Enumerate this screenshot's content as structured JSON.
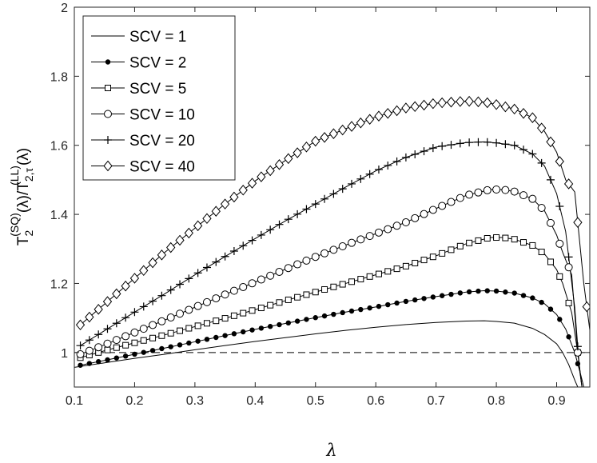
{
  "chart_data": {
    "type": "line",
    "title": "",
    "xlabel": "λ",
    "ylabel": {
      "base": "T",
      "sub1": "2",
      "sup1": "(SQ)",
      "mid": "(λ)/T",
      "sub2": "2,τ",
      "sup2": "(LL)",
      "tail": "(λ)"
    },
    "xlim": [
      0.1,
      0.955
    ],
    "ylim": [
      0.9,
      2.0
    ],
    "xticks": [
      "0.1",
      "0.2",
      "0.3",
      "0.4",
      "0.5",
      "0.6",
      "0.7",
      "0.8",
      "0.9"
    ],
    "yticks": [
      "1",
      "1.2",
      "1.4",
      "1.6",
      "1.8",
      "2"
    ],
    "legend_position": "top-left",
    "reference_line": {
      "y": 1.0,
      "style": "dashed"
    },
    "series": [
      {
        "name": "SCV = 1",
        "marker": "none",
        "points": [
          [
            0.1,
            0.957
          ],
          [
            0.15,
            0.97
          ],
          [
            0.2,
            0.983
          ],
          [
            0.25,
            0.995
          ],
          [
            0.3,
            1.008
          ],
          [
            0.35,
            1.02
          ],
          [
            0.4,
            1.032
          ],
          [
            0.45,
            1.043
          ],
          [
            0.5,
            1.054
          ],
          [
            0.55,
            1.064
          ],
          [
            0.6,
            1.073
          ],
          [
            0.65,
            1.081
          ],
          [
            0.7,
            1.087
          ],
          [
            0.75,
            1.091
          ],
          [
            0.78,
            1.092
          ],
          [
            0.8,
            1.09
          ],
          [
            0.83,
            1.085
          ],
          [
            0.86,
            1.07
          ],
          [
            0.88,
            1.052
          ],
          [
            0.9,
            1.025
          ],
          [
            0.91,
            1.0
          ],
          [
            0.92,
            0.965
          ],
          [
            0.93,
            0.92
          ],
          [
            0.935,
            0.9
          ]
        ]
      },
      {
        "name": "SCV = 2",
        "marker": "dot",
        "points": [
          [
            0.11,
            0.963
          ],
          [
            0.15,
            0.977
          ],
          [
            0.2,
            0.995
          ],
          [
            0.25,
            1.013
          ],
          [
            0.3,
            1.031
          ],
          [
            0.35,
            1.049
          ],
          [
            0.4,
            1.067
          ],
          [
            0.45,
            1.084
          ],
          [
            0.5,
            1.101
          ],
          [
            0.55,
            1.117
          ],
          [
            0.6,
            1.132
          ],
          [
            0.65,
            1.148
          ],
          [
            0.7,
            1.162
          ],
          [
            0.75,
            1.175
          ],
          [
            0.78,
            1.179
          ],
          [
            0.8,
            1.178
          ],
          [
            0.83,
            1.172
          ],
          [
            0.86,
            1.158
          ],
          [
            0.88,
            1.141
          ],
          [
            0.9,
            1.11
          ],
          [
            0.915,
            1.068
          ],
          [
            0.93,
            1.0
          ],
          [
            0.94,
            0.935
          ],
          [
            0.945,
            0.9
          ]
        ]
      },
      {
        "name": "SCV = 5",
        "marker": "square",
        "points": [
          [
            0.11,
            0.985
          ],
          [
            0.15,
            1.005
          ],
          [
            0.2,
            1.028
          ],
          [
            0.25,
            1.051
          ],
          [
            0.3,
            1.075
          ],
          [
            0.35,
            1.099
          ],
          [
            0.4,
            1.124
          ],
          [
            0.45,
            1.15
          ],
          [
            0.5,
            1.175
          ],
          [
            0.55,
            1.2
          ],
          [
            0.6,
            1.225
          ],
          [
            0.65,
            1.25
          ],
          [
            0.7,
            1.28
          ],
          [
            0.75,
            1.315
          ],
          [
            0.79,
            1.333
          ],
          [
            0.81,
            1.333
          ],
          [
            0.83,
            1.328
          ],
          [
            0.86,
            1.31
          ],
          [
            0.88,
            1.285
          ],
          [
            0.9,
            1.24
          ],
          [
            0.91,
            1.2
          ],
          [
            0.925,
            1.115
          ],
          [
            0.935,
            1.0
          ],
          [
            0.942,
            0.9
          ]
        ]
      },
      {
        "name": "SCV = 10",
        "marker": "circle",
        "points": [
          [
            0.11,
            0.995
          ],
          [
            0.15,
            1.022
          ],
          [
            0.2,
            1.058
          ],
          [
            0.25,
            1.094
          ],
          [
            0.3,
            1.131
          ],
          [
            0.35,
            1.168
          ],
          [
            0.4,
            1.204
          ],
          [
            0.45,
            1.241
          ],
          [
            0.5,
            1.277
          ],
          [
            0.55,
            1.311
          ],
          [
            0.6,
            1.344
          ],
          [
            0.65,
            1.377
          ],
          [
            0.7,
            1.417
          ],
          [
            0.75,
            1.455
          ],
          [
            0.79,
            1.472
          ],
          [
            0.81,
            1.472
          ],
          [
            0.83,
            1.466
          ],
          [
            0.86,
            1.445
          ],
          [
            0.88,
            1.41
          ],
          [
            0.9,
            1.34
          ],
          [
            0.91,
            1.29
          ],
          [
            0.925,
            1.225
          ],
          [
            0.935,
            1.0
          ],
          [
            0.942,
            0.9
          ]
        ]
      },
      {
        "name": "SCV = 20",
        "marker": "plus",
        "points": [
          [
            0.11,
            1.02
          ],
          [
            0.15,
            1.063
          ],
          [
            0.2,
            1.117
          ],
          [
            0.25,
            1.17
          ],
          [
            0.3,
            1.225
          ],
          [
            0.35,
            1.278
          ],
          [
            0.4,
            1.33
          ],
          [
            0.45,
            1.381
          ],
          [
            0.5,
            1.43
          ],
          [
            0.55,
            1.479
          ],
          [
            0.6,
            1.526
          ],
          [
            0.65,
            1.565
          ],
          [
            0.7,
            1.595
          ],
          [
            0.75,
            1.608
          ],
          [
            0.78,
            1.61
          ],
          [
            0.8,
            1.607
          ],
          [
            0.83,
            1.6
          ],
          [
            0.86,
            1.575
          ],
          [
            0.88,
            1.54
          ],
          [
            0.9,
            1.46
          ],
          [
            0.915,
            1.35
          ],
          [
            0.93,
            1.13
          ],
          [
            0.938,
            0.95
          ],
          [
            0.942,
            0.9
          ]
        ]
      },
      {
        "name": "SCV = 40",
        "marker": "diamond",
        "points": [
          [
            0.11,
            1.08
          ],
          [
            0.15,
            1.14
          ],
          [
            0.2,
            1.215
          ],
          [
            0.25,
            1.29
          ],
          [
            0.3,
            1.36
          ],
          [
            0.35,
            1.43
          ],
          [
            0.4,
            1.497
          ],
          [
            0.45,
            1.556
          ],
          [
            0.5,
            1.612
          ],
          [
            0.55,
            1.648
          ],
          [
            0.6,
            1.682
          ],
          [
            0.65,
            1.708
          ],
          [
            0.7,
            1.722
          ],
          [
            0.75,
            1.728
          ],
          [
            0.78,
            1.725
          ],
          [
            0.8,
            1.718
          ],
          [
            0.83,
            1.705
          ],
          [
            0.86,
            1.68
          ],
          [
            0.88,
            1.64
          ],
          [
            0.9,
            1.58
          ],
          [
            0.915,
            1.5
          ],
          [
            0.93,
            1.465
          ],
          [
            0.945,
            1.2
          ],
          [
            0.955,
            1.065
          ]
        ]
      }
    ]
  }
}
